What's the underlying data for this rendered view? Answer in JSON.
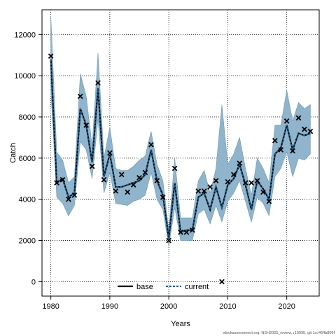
{
  "chart_data": {
    "type": "line",
    "title": "",
    "xlabel": "Years",
    "ylabel": "Catch",
    "xlim": [
      1978.5,
      2025.5
    ],
    "ylim": [
      -700,
      13200
    ],
    "x_ticks": [
      1980,
      1990,
      2000,
      2010,
      2020
    ],
    "y_ticks": [
      0,
      2000,
      4000,
      6000,
      8000,
      10000,
      12000
    ],
    "grid": true,
    "legend_position": "bottom",
    "legend": [
      {
        "label": "base",
        "style": "solid",
        "color": "#000000"
      },
      {
        "label": "current",
        "style": "dashed",
        "color": "#1a5a8a"
      }
    ],
    "x": [
      1980,
      1981,
      1982,
      1983,
      1984,
      1985,
      1986,
      1987,
      1988,
      1989,
      1990,
      1991,
      1992,
      1993,
      1994,
      1995,
      1996,
      1997,
      1998,
      1999,
      2000,
      2001,
      2002,
      2003,
      2004,
      2005,
      2006,
      2007,
      2008,
      2009,
      2010,
      2011,
      2012,
      2013,
      2014,
      2015,
      2016,
      2017,
      2018,
      2019,
      2020,
      2021,
      2022,
      2023,
      2024
    ],
    "series": [
      {
        "name": "current",
        "values": [
          10800,
          4800,
          5000,
          4100,
          4300,
          8400,
          7600,
          5800,
          9400,
          5100,
          6200,
          4600,
          4600,
          4700,
          4800,
          4900,
          5200,
          6400,
          4900,
          4200,
          2100,
          4800,
          2400,
          2500,
          2500,
          4100,
          4300,
          3500,
          4600,
          3600,
          4700,
          5000,
          5700,
          4700,
          3500,
          4900,
          4500,
          4000,
          6200,
          6500,
          7600,
          6400,
          7200,
          7100,
          7200
        ],
        "lower": [
          9300,
          4100,
          3800,
          3200,
          3700,
          6800,
          6400,
          5000,
          7900,
          4300,
          5300,
          3800,
          3750,
          3700,
          3900,
          4000,
          4200,
          5300,
          4000,
          3500,
          1700,
          3600,
          2000,
          2000,
          2000,
          3300,
          3500,
          2800,
          3700,
          2900,
          3900,
          4300,
          4900,
          3900,
          2900,
          4100,
          3800,
          3200,
          5100,
          5500,
          6300,
          5100,
          6000,
          5900,
          6200
        ],
        "upper": [
          12900,
          6300,
          5900,
          4800,
          5100,
          10100,
          9000,
          6600,
          11100,
          6000,
          7500,
          5500,
          5400,
          5400,
          5600,
          5900,
          6100,
          7300,
          5700,
          4900,
          2500,
          6000,
          3100,
          3100,
          3100,
          4900,
          5400,
          4300,
          5500,
          8600,
          5700,
          6200,
          7000,
          5500,
          4200,
          6000,
          5500,
          4800,
          7600,
          7600,
          9300,
          7800,
          8700,
          8400,
          8600
        ]
      }
    ],
    "observed": {
      "marker": "x",
      "years": [
        1980,
        1981,
        1982,
        1983,
        1984,
        1985,
        1986,
        1987,
        1988,
        1989,
        1990,
        1991,
        1992,
        1993,
        1994,
        1995,
        1996,
        1997,
        1998,
        1999,
        2000,
        2001,
        2002,
        2003,
        2004,
        2005,
        2006,
        2007,
        2008,
        2009,
        2010,
        2011,
        2012,
        2013,
        2014,
        2015,
        2016,
        2017,
        2018,
        2019,
        2020,
        2021,
        2022,
        2023,
        2024
      ],
      "values": [
        10950,
        4800,
        4950,
        4000,
        4200,
        9000,
        7600,
        5600,
        9650,
        4950,
        6250,
        4400,
        5200,
        4350,
        4700,
        5050,
        5300,
        6650,
        4900,
        4100,
        2000,
        5500,
        2400,
        2400,
        2500,
        4400,
        4400,
        4600,
        4900,
        0,
        4850,
        5200,
        5750,
        4800,
        4800,
        4900,
        4350,
        3900,
        6850,
        6400,
        7800,
        6350,
        7950,
        7400,
        7300
      ]
    },
    "colors": {
      "band": "#8fb4cc",
      "band_edge": "#6f99b5",
      "current_line": "#1a5a8a",
      "base_line": "#000000",
      "grid": "#000000"
    }
  },
  "watermark": "stockassessment.org, NSH2025_review, r19095, git:1cc464b806f"
}
